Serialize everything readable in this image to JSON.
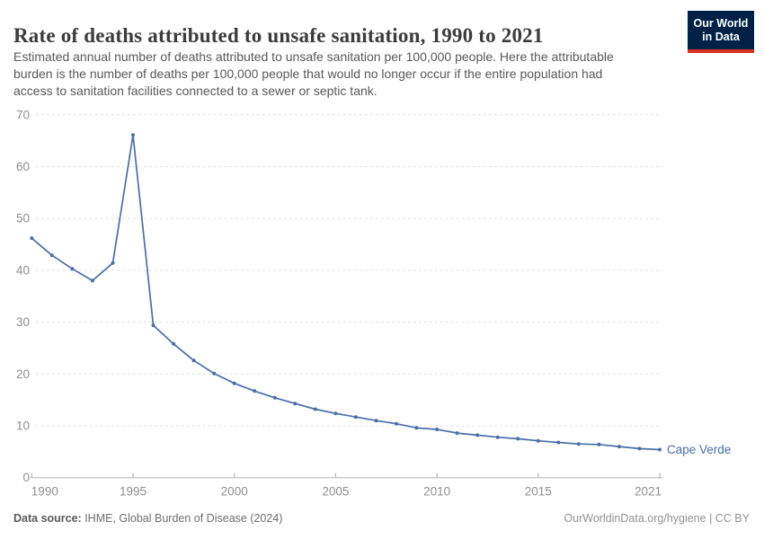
{
  "header": {
    "title": "Rate of deaths attributed to unsafe sanitation, 1990 to 2021",
    "subtitle": "Estimated annual number of deaths attributed to unsafe sanitation per 100,000 people. Here the attributable burden is the number of deaths per 100,000 people that would no longer occur if the entire population had access to sanitation facilities connected to a sewer or septic tank.",
    "subtitle_lines": [
      "Estimated annual number of deaths attributed to unsafe sanitation per 100,000 people. Here the attributable",
      "burden is the number of deaths per 100,000 people that would no longer occur if the entire population had",
      "access to sanitation facilities connected to a sewer or septic tank."
    ],
    "logo": {
      "line1": "Our World",
      "line2": "in Data"
    }
  },
  "chart_data": {
    "type": "line",
    "title": "Rate of deaths attributed to unsafe sanitation, 1990 to 2021",
    "xlabel": "",
    "ylabel": "",
    "ylim": [
      0,
      70
    ],
    "y_ticks": [
      0,
      10,
      20,
      30,
      40,
      50,
      60,
      70
    ],
    "x_ticks": [
      1990,
      1995,
      2000,
      2005,
      2010,
      2015,
      2021
    ],
    "grid": "horizontal-dashed",
    "legend_position": "end-of-line-label",
    "x": [
      1990,
      1991,
      1992,
      1993,
      1994,
      1995,
      1996,
      1997,
      1998,
      1999,
      2000,
      2001,
      2002,
      2003,
      2004,
      2005,
      2006,
      2007,
      2008,
      2009,
      2010,
      2011,
      2012,
      2013,
      2014,
      2015,
      2016,
      2017,
      2018,
      2019,
      2020,
      2021
    ],
    "series": [
      {
        "name": "Cape Verde",
        "values": [
          46.2,
          42.9,
          40.3,
          38.0,
          41.4,
          66.1,
          29.4,
          25.8,
          22.6,
          20.1,
          18.2,
          16.7,
          15.4,
          14.3,
          13.2,
          12.4,
          11.7,
          11.0,
          10.4,
          9.6,
          9.3,
          8.6,
          8.2,
          7.8,
          7.5,
          7.1,
          6.8,
          6.5,
          6.4,
          6.0,
          5.6,
          5.4
        ]
      }
    ]
  },
  "footer": {
    "datasource_label": "Data source:",
    "datasource_value": " IHME, Global Burden of Disease (2024)",
    "attribution": "OurWorldinData.org/hygiene | CC BY"
  },
  "colors": {
    "line": "#4a6da8",
    "entity_label": "#4a6da8",
    "gridline": "#dedede",
    "axis_line": "#b5b5b5",
    "tick_mark": "#a9a9a9",
    "tick_text": "#8f8f8f",
    "logo_bg": "#002147",
    "logo_stripe": "#dc3122"
  }
}
